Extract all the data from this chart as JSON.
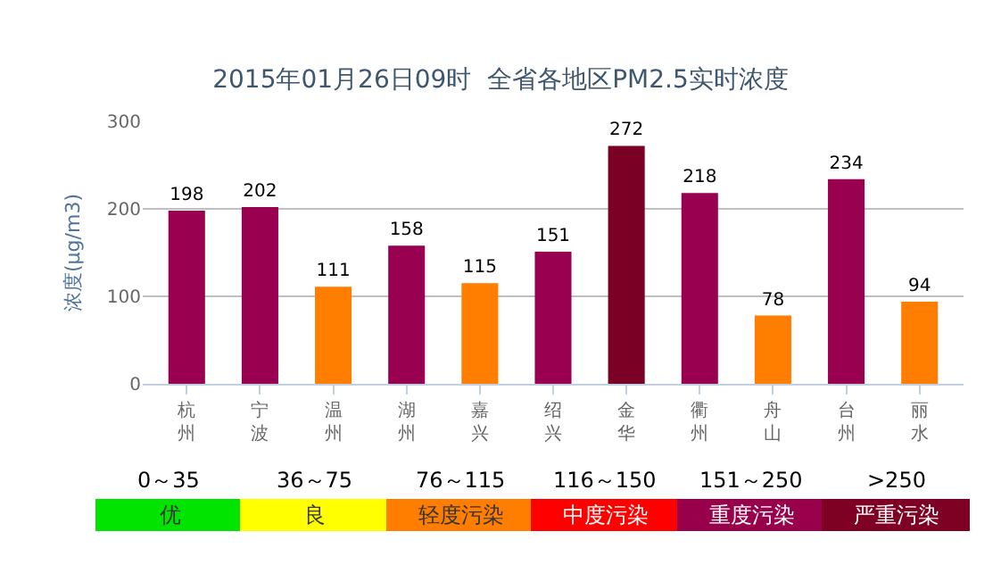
{
  "chart_data": {
    "type": "bar",
    "title": "2015年01月26日09时  全省各地区PM2.5实时浓度",
    "ylabel": "浓度(μg/m3)",
    "categories": [
      "杭州",
      "宁波",
      "温州",
      "湖州",
      "嘉兴",
      "绍兴",
      "金华",
      "衢州",
      "舟山",
      "台州",
      "丽水"
    ],
    "values": [
      198,
      202,
      111,
      158,
      115,
      151,
      272,
      218,
      78,
      234,
      94
    ],
    "colors": [
      "#990050",
      "#990050",
      "#ff7e00",
      "#990050",
      "#ff7e00",
      "#990050",
      "#7a0026",
      "#990050",
      "#ff7e00",
      "#990050",
      "#ff7e00"
    ],
    "ylim": [
      0,
      300
    ],
    "yticks": [
      0,
      100,
      200,
      300
    ],
    "grid": "y",
    "data_labels": true,
    "annotations": [
      "0～35",
      "优",
      "36～75",
      "良",
      "76～115",
      "轻度污染",
      "116～150",
      "中度污染",
      "151～250",
      "重度污染",
      ">250",
      "严重污染"
    ]
  }
}
